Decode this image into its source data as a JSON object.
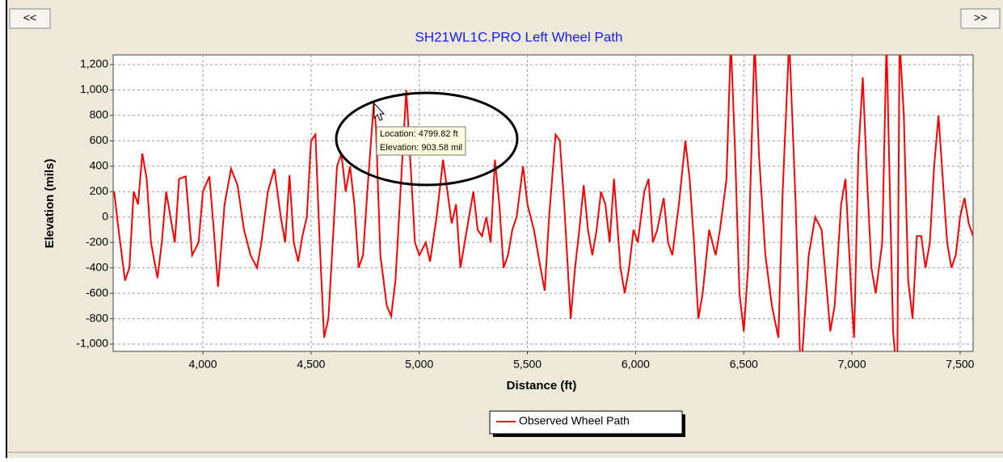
{
  "nav": {
    "prev": "<<",
    "next": ">>"
  },
  "chart_data": {
    "type": "line",
    "title": "SH21WL1C.PRO Left Wheel Path",
    "x_label": "Distance (ft)",
    "y_label": "Elevation (mils)",
    "xlim": [
      3585,
      7560
    ],
    "ylim": [
      -1057,
      1276
    ],
    "xticks": [
      {
        "value": 4000,
        "label": "4,000"
      },
      {
        "value": 4500,
        "label": "4,500"
      },
      {
        "value": 5000,
        "label": "5,000"
      },
      {
        "value": 5500,
        "label": "5,500"
      },
      {
        "value": 6000,
        "label": "6,000"
      },
      {
        "value": 6500,
        "label": "6,500"
      },
      {
        "value": 7000,
        "label": "7,000"
      },
      {
        "value": 7500,
        "label": "7,500"
      }
    ],
    "yticks": [
      {
        "value": -1000,
        "label": "-1,000"
      },
      -800,
      -600,
      -400,
      -200,
      0,
      200,
      400,
      600,
      800,
      {
        "value": 1000,
        "label": "1,000"
      },
      {
        "value": 1200,
        "label": "1,200"
      }
    ],
    "grid": true,
    "legend": "bottom",
    "x": [
      3590,
      3610,
      3640,
      3660,
      3680,
      3700,
      3720,
      3740,
      3760,
      3790,
      3810,
      3830,
      3850,
      3870,
      3890,
      3920,
      3950,
      3980,
      4000,
      4030,
      4050,
      4070,
      4100,
      4130,
      4160,
      4190,
      4220,
      4250,
      4270,
      4300,
      4330,
      4360,
      4380,
      4400,
      4420,
      4440,
      4460,
      4480,
      4500,
      4520,
      4540,
      4560,
      4580,
      4600,
      4620,
      4640,
      4660,
      4680,
      4700,
      4720,
      4740,
      4760,
      4790,
      4800,
      4820,
      4850,
      4870,
      4890,
      4920,
      4940,
      4960,
      4980,
      5000,
      5030,
      5050,
      5080,
      5110,
      5130,
      5150,
      5170,
      5190,
      5210,
      5230,
      5250,
      5270,
      5290,
      5310,
      5330,
      5350,
      5370,
      5390,
      5410,
      5430,
      5450,
      5480,
      5500,
      5530,
      5560,
      5580,
      5600,
      5630,
      5650,
      5670,
      5700,
      5720,
      5740,
      5760,
      5780,
      5800,
      5820,
      5840,
      5860,
      5880,
      5900,
      5930,
      5950,
      5970,
      5990,
      6010,
      6040,
      6060,
      6080,
      6100,
      6130,
      6150,
      6170,
      6200,
      6230,
      6250,
      6270,
      6290,
      6310,
      6340,
      6370,
      6390,
      6420,
      6440,
      6460,
      6480,
      6500,
      6520,
      6550,
      6570,
      6600,
      6630,
      6660,
      6680,
      6710,
      6740,
      6760,
      6770,
      6800,
      6830,
      6860,
      6880,
      6900,
      6920,
      6950,
      6970,
      7000,
      7010,
      7030,
      7050,
      7070,
      7090,
      7110,
      7140,
      7160,
      7170,
      7190,
      7200,
      7210,
      7220,
      7240,
      7260,
      7280,
      7300,
      7320,
      7340,
      7360,
      7380,
      7400,
      7420,
      7440,
      7460,
      7480,
      7500,
      7520,
      7540,
      7560
    ],
    "series": [
      {
        "name": "Observed Wheel Path",
        "color": "#ff0000",
        "values": [
          200,
          -100,
          -500,
          -400,
          200,
          100,
          500,
          300,
          -200,
          -480,
          -200,
          200,
          0,
          -200,
          300,
          320,
          -300,
          -200,
          200,
          320,
          -100,
          -550,
          100,
          380,
          250,
          -100,
          -300,
          -400,
          -200,
          200,
          380,
          0,
          -200,
          330,
          -200,
          -350,
          -150,
          0,
          600,
          650,
          -200,
          -950,
          -800,
          -200,
          400,
          500,
          200,
          400,
          100,
          -400,
          -300,
          200,
          900,
          700,
          -300,
          -700,
          -780,
          -500,
          400,
          1000,
          400,
          -200,
          -300,
          -200,
          -350,
          0,
          450,
          200,
          -50,
          100,
          -400,
          -200,
          0,
          200,
          -100,
          -150,
          0,
          -200,
          450,
          100,
          -400,
          -300,
          -100,
          0,
          400,
          100,
          -100,
          -400,
          -580,
          0,
          650,
          600,
          100,
          -800,
          -400,
          -100,
          250,
          -100,
          -300,
          -100,
          200,
          100,
          -200,
          300,
          -400,
          -600,
          -400,
          -100,
          -200,
          200,
          300,
          -200,
          -100,
          150,
          -200,
          -300,
          100,
          600,
          300,
          -200,
          -800,
          -600,
          -100,
          -300,
          -100,
          300,
          1400,
          500,
          -600,
          -900,
          -400,
          1400,
          500,
          -300,
          -700,
          -950,
          200,
          1400,
          100,
          -1100,
          -1100,
          -300,
          0,
          -100,
          -500,
          -900,
          -700,
          100,
          300,
          -700,
          -950,
          500,
          1100,
          300,
          -400,
          -600,
          -200,
          1400,
          600,
          -900,
          -1100,
          -1100,
          1400,
          800,
          -500,
          -800,
          -150,
          -150,
          -400,
          -200,
          400,
          800,
          300,
          -200,
          -400,
          -300,
          0,
          150,
          -50,
          -150
        ]
      }
    ]
  },
  "tooltip": {
    "location": "Location: 4799.82 ft",
    "elevation": "Elevation: 903.58 mil"
  }
}
